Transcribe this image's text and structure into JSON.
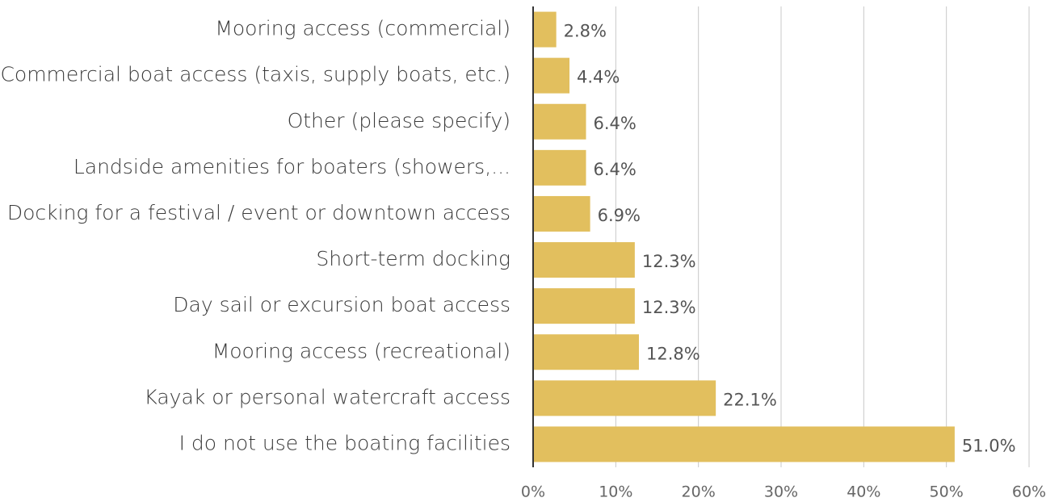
{
  "chart_data": {
    "type": "barh",
    "categories": [
      "Mooring access (commercial)",
      "Commercial boat access (taxis, supply boats, etc.)",
      "Other (please specify)",
      "Landside amenities for boaters (showers,...",
      "Docking for a festival / event or downtown access",
      "Short-term docking",
      "Day sail or excursion boat access",
      "Mooring access (recreational)",
      "Kayak or personal watercraft access",
      "I do not use the boating facilities"
    ],
    "values": [
      2.8,
      4.4,
      6.4,
      6.4,
      6.9,
      12.3,
      12.3,
      12.8,
      22.1,
      51.0
    ],
    "value_labels": [
      "2.8%",
      "4.4%",
      "6.4%",
      "6.4%",
      "6.9%",
      "12.3%",
      "12.3%",
      "12.8%",
      "22.1%",
      "51.0%"
    ],
    "color": "#e2bf5e",
    "xlim": [
      0,
      60
    ],
    "xticks": [
      {
        "value": 0,
        "label": "0%"
      },
      {
        "value": 10,
        "label": "10%"
      },
      {
        "value": 20,
        "label": "20%"
      },
      {
        "value": 30,
        "label": "30%"
      },
      {
        "value": 40,
        "label": "40%"
      },
      {
        "value": 50,
        "label": "50%"
      },
      {
        "value": 60,
        "label": "60%"
      }
    ],
    "grid": true
  }
}
